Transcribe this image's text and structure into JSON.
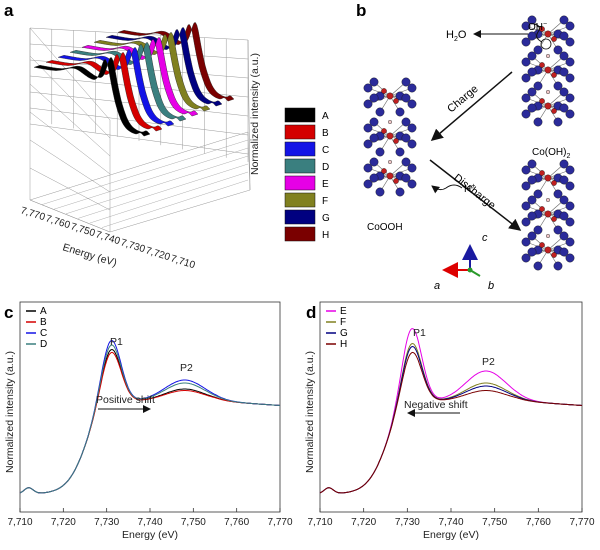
{
  "panels": {
    "a": "a",
    "b": "b",
    "c": "c",
    "d": "d"
  },
  "colors": {
    "A": "#000000",
    "B": "#d40000",
    "C": "#1414e6",
    "D": "#3a7f7f",
    "E": "#e600e6",
    "F": "#808020",
    "G": "#000080",
    "H": "#7a0000"
  },
  "chart_data": [
    {
      "type": "line",
      "panel": "a",
      "subtype": "3d-waterfall",
      "xlabel": "Energy (eV)",
      "zlabel": "Normalized intensity (a.u.)",
      "x_ticks": [
        "7,770",
        "7,760",
        "7,750",
        "7,740",
        "7,730",
        "7,720",
        "7,710"
      ],
      "legend": [
        "A",
        "B",
        "C",
        "D",
        "E",
        "F",
        "G",
        "H"
      ],
      "series": [
        {
          "name": "A"
        },
        {
          "name": "B"
        },
        {
          "name": "C"
        },
        {
          "name": "D"
        },
        {
          "name": "E"
        },
        {
          "name": "F"
        },
        {
          "name": "G"
        },
        {
          "name": "H"
        }
      ]
    },
    {
      "type": "line",
      "panel": "c",
      "xlabel": "Energy (eV)",
      "ylabel": "Normalized intensity (a.u.)",
      "xlim": [
        7710,
        7770
      ],
      "x_ticks": [
        "7,710",
        "7,720",
        "7,730",
        "7,740",
        "7,750",
        "7,760",
        "7,770"
      ],
      "annotations": [
        "P1",
        "P2",
        "Positive shift"
      ],
      "series": [
        {
          "name": "A",
          "peak1": 1.0,
          "peak2": 0.7
        },
        {
          "name": "B",
          "peak1": 0.98,
          "peak2": 0.69
        },
        {
          "name": "C",
          "peak1": 1.06,
          "peak2": 0.76
        },
        {
          "name": "D",
          "peak1": 1.03,
          "peak2": 0.74
        }
      ]
    },
    {
      "type": "line",
      "panel": "d",
      "xlabel": "Energy (eV)",
      "ylabel": "Normalized intensity (a.u.)",
      "xlim": [
        7710,
        7770
      ],
      "x_ticks": [
        "7,710",
        "7,720",
        "7,730",
        "7,740",
        "7,750",
        "7,760",
        "7,770"
      ],
      "annotations": [
        "P1",
        "P2",
        "Negative shift"
      ],
      "series": [
        {
          "name": "E",
          "peak1": 1.14,
          "peak2": 0.82
        },
        {
          "name": "F",
          "peak1": 1.04,
          "peak2": 0.74
        },
        {
          "name": "G",
          "peak1": 1.02,
          "peak2": 0.72
        },
        {
          "name": "H",
          "peak1": 0.98,
          "peak2": 0.69
        }
      ]
    }
  ],
  "diagram_b": {
    "left_label": "CoOOH",
    "right_label": "Co(OH)",
    "right_label_sub": "2",
    "charge_label": "Charge",
    "discharge_label": "Discharge",
    "water": "H",
    "water_sub": "2",
    "water_tail": "O",
    "oh": "OH",
    "oh_sup": "−",
    "hplus": "H",
    "hplus_sup": "+",
    "axis_a": "a",
    "axis_b": "b",
    "axis_c": "c"
  }
}
